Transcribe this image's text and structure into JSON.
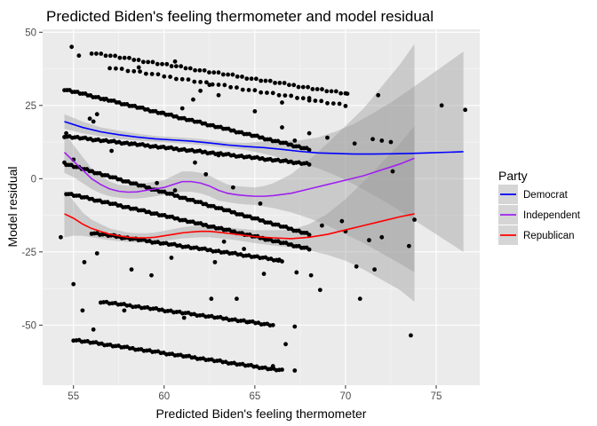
{
  "chart_data": {
    "type": "scatter",
    "title": "Predicted Biden's feeling thermometer and model residual",
    "xlabel": "Predicted Biden's feeling thermometer",
    "ylabel": "Model residual",
    "xlim": [
      53.3,
      77.4
    ],
    "ylim": [
      -70.5,
      51
    ],
    "x_ticks": [
      55,
      60,
      65,
      70,
      75
    ],
    "y_ticks": [
      -50,
      -25,
      0,
      25,
      50
    ],
    "grid": true,
    "legend": {
      "title": "Party",
      "placement": "right",
      "entries": [
        {
          "name": "Democrat",
          "color": "#0000FF"
        },
        {
          "name": "Independent",
          "color": "#A020F0"
        },
        {
          "name": "Republican",
          "color": "#FF0000"
        }
      ]
    },
    "point_color": "#000000",
    "band_color": "#999999",
    "bands": [
      {
        "x0": 54.5,
        "x1": 68.0,
        "y0": 30.5,
        "y1": 10.0,
        "n": 95
      },
      {
        "x0": 54.5,
        "x1": 68.0,
        "y0": 14.5,
        "y1": 5.0,
        "n": 95
      },
      {
        "x0": 54.6,
        "x1": 68.0,
        "y0": 5.0,
        "y1": -19.0,
        "n": 95
      },
      {
        "x0": 54.6,
        "x1": 68.0,
        "y0": -5.0,
        "y1": -24.0,
        "n": 95
      },
      {
        "x0": 56.0,
        "x1": 66.5,
        "y0": -18.5,
        "y1": -28.0,
        "n": 70
      },
      {
        "x0": 56.5,
        "x1": 66.0,
        "y0": -42.0,
        "y1": -50.0,
        "n": 60
      },
      {
        "x0": 55.0,
        "x1": 66.5,
        "y0": -55.0,
        "y1": -65.5,
        "n": 75
      },
      {
        "x0": 56.0,
        "x1": 70.0,
        "y0": 43.0,
        "y1": 29.0,
        "n": 55
      },
      {
        "x0": 57.0,
        "x1": 70.0,
        "y0": 38.0,
        "y1": 25.0,
        "n": 40
      }
    ],
    "points": [
      {
        "x": 54.9,
        "y": 45.0
      },
      {
        "x": 55.3,
        "y": 42.0
      },
      {
        "x": 58.6,
        "y": 38.0
      },
      {
        "x": 60.6,
        "y": 40.0
      },
      {
        "x": 62.0,
        "y": 30.0
      },
      {
        "x": 62.5,
        "y": 32.0
      },
      {
        "x": 63.0,
        "y": 28.5
      },
      {
        "x": 61.6,
        "y": 27.0
      },
      {
        "x": 65.0,
        "y": 23.0
      },
      {
        "x": 66.5,
        "y": 26.0
      },
      {
        "x": 68.0,
        "y": 27.5
      },
      {
        "x": 70.1,
        "y": 29.0
      },
      {
        "x": 71.8,
        "y": 28.5
      },
      {
        "x": 66.5,
        "y": 17.5
      },
      {
        "x": 68.0,
        "y": 15.5
      },
      {
        "x": 56.7,
        "y": 27.0
      },
      {
        "x": 56.3,
        "y": 22.0
      },
      {
        "x": 55.9,
        "y": 20.5
      },
      {
        "x": 56.1,
        "y": 19.5
      },
      {
        "x": 59.9,
        "y": 22.5
      },
      {
        "x": 61.0,
        "y": 24.0
      },
      {
        "x": 67.2,
        "y": 13.0
      },
      {
        "x": 69.0,
        "y": 14.0
      },
      {
        "x": 70.5,
        "y": 12.0
      },
      {
        "x": 71.5,
        "y": 13.5
      },
      {
        "x": 72.0,
        "y": 13.0
      },
      {
        "x": 72.5,
        "y": 12.5
      },
      {
        "x": 75.3,
        "y": 25.0
      },
      {
        "x": 76.6,
        "y": 23.5
      },
      {
        "x": 54.6,
        "y": 15.5
      },
      {
        "x": 54.5,
        "y": 5.5
      },
      {
        "x": 54.3,
        "y": -20.0
      },
      {
        "x": 55.0,
        "y": 6.5
      },
      {
        "x": 57.1,
        "y": 9.5
      },
      {
        "x": 58.2,
        "y": 12.0
      },
      {
        "x": 59.6,
        "y": -1.5
      },
      {
        "x": 60.6,
        "y": -4.0
      },
      {
        "x": 61.7,
        "y": 5.5
      },
      {
        "x": 62.3,
        "y": 1.5
      },
      {
        "x": 63.0,
        "y": 8.0
      },
      {
        "x": 63.8,
        "y": -3.0
      },
      {
        "x": 65.3,
        "y": -8.5
      },
      {
        "x": 68.7,
        "y": -16.0
      },
      {
        "x": 69.8,
        "y": -14.5
      },
      {
        "x": 70.0,
        "y": -18.0
      },
      {
        "x": 71.3,
        "y": -21.0
      },
      {
        "x": 70.6,
        "y": -30.0
      },
      {
        "x": 71.6,
        "y": -31.0
      },
      {
        "x": 72.0,
        "y": -20.0
      },
      {
        "x": 72.6,
        "y": 2.5
      },
      {
        "x": 73.5,
        "y": -23.0
      },
      {
        "x": 73.8,
        "y": -14.0
      },
      {
        "x": 73.6,
        "y": -53.5
      },
      {
        "x": 70.8,
        "y": -41.0
      },
      {
        "x": 65.5,
        "y": -32.5
      },
      {
        "x": 67.3,
        "y": -32.0
      },
      {
        "x": 68.1,
        "y": -33.0
      },
      {
        "x": 68.6,
        "y": -38.0
      },
      {
        "x": 59.3,
        "y": -33.0
      },
      {
        "x": 58.2,
        "y": -31.0
      },
      {
        "x": 55.0,
        "y": -36.0
      },
      {
        "x": 55.5,
        "y": -45.0
      },
      {
        "x": 56.1,
        "y": -51.5
      },
      {
        "x": 57.8,
        "y": -45.0
      },
      {
        "x": 61.1,
        "y": -47.5
      },
      {
        "x": 62.6,
        "y": -41.0
      },
      {
        "x": 64.0,
        "y": -41.0
      },
      {
        "x": 64.6,
        "y": -49.0
      },
      {
        "x": 67.2,
        "y": -50.5
      },
      {
        "x": 66.7,
        "y": -56.5
      },
      {
        "x": 67.2,
        "y": -65.5
      },
      {
        "x": 66.0,
        "y": -64.0
      },
      {
        "x": 55.6,
        "y": -28.5
      },
      {
        "x": 56.3,
        "y": -25.5
      },
      {
        "x": 63.3,
        "y": -21.5
      },
      {
        "x": 64.4,
        "y": -24.0
      },
      {
        "x": 66.3,
        "y": -28.0
      },
      {
        "x": 62.8,
        "y": -28.5
      },
      {
        "x": 60.4,
        "y": -27.0
      },
      {
        "x": 57.3,
        "y": -19.5
      }
    ],
    "series": [
      {
        "name": "Democrat",
        "color": "#0000FF",
        "x": [
          54.5,
          55.5,
          56.5,
          57.5,
          58.5,
          59.5,
          60.5,
          61.5,
          62.5,
          63.5,
          64.5,
          65.5,
          66.5,
          67.5,
          68.5,
          69.5,
          70.5,
          71.5,
          72.5,
          73.5,
          74.5,
          75.5,
          76.5
        ],
        "y": [
          19.5,
          17.5,
          16.0,
          15.0,
          14.2,
          13.6,
          13.2,
          12.8,
          12.2,
          11.5,
          11.0,
          10.6,
          10.0,
          9.3,
          8.8,
          8.6,
          8.4,
          8.4,
          8.5,
          8.6,
          8.8,
          9.0,
          9.2
        ],
        "band_low": [
          17.0,
          15.5,
          14.5,
          13.6,
          13.0,
          12.6,
          12.2,
          11.8,
          11.2,
          10.5,
          9.8,
          8.5,
          7.0,
          5.5,
          3.5,
          1.0,
          -2.0,
          -5.5,
          -9.0,
          -13.0,
          -17.0,
          -21.0,
          -25.0
        ],
        "band_high": [
          22.0,
          19.5,
          17.5,
          16.4,
          15.4,
          14.6,
          14.2,
          13.8,
          13.2,
          12.5,
          12.2,
          12.7,
          13.0,
          13.1,
          14.1,
          16.2,
          18.8,
          22.3,
          26.0,
          30.2,
          34.6,
          39.0,
          43.4
        ]
      },
      {
        "name": "Independent",
        "color": "#A020F0",
        "x": [
          54.5,
          55.0,
          55.5,
          56.0,
          56.5,
          57.0,
          57.5,
          58.0,
          58.5,
          59.0,
          59.5,
          60.0,
          60.5,
          61.0,
          61.5,
          62.0,
          62.5,
          63.0,
          63.5,
          64.0,
          64.5,
          65.0,
          65.5,
          66.0,
          67.0,
          68.0,
          69.0,
          70.0,
          71.0,
          72.0,
          73.0,
          73.8
        ],
        "y": [
          9.0,
          6.0,
          3.0,
          0.0,
          -2.0,
          -3.5,
          -4.3,
          -4.6,
          -4.5,
          -4.0,
          -3.5,
          -3.0,
          -2.0,
          -1.0,
          -1.0,
          -1.5,
          -2.5,
          -4.0,
          -5.0,
          -5.5,
          -5.8,
          -6.0,
          -6.0,
          -5.8,
          -5.0,
          -3.5,
          -2.0,
          -0.5,
          1.0,
          3.0,
          5.0,
          7.0
        ],
        "band_low": [
          2.0,
          0.5,
          -1.5,
          -3.5,
          -5.0,
          -6.0,
          -6.5,
          -6.8,
          -6.8,
          -6.5,
          -6.0,
          -5.5,
          -5.0,
          -4.5,
          -4.5,
          -5.0,
          -6.0,
          -7.5,
          -8.0,
          -8.5,
          -8.8,
          -9.0,
          -9.5,
          -10.0,
          -11.5,
          -13.5,
          -16.0,
          -19.0,
          -22.0,
          -25.5,
          -29.0,
          -32.0
        ],
        "band_high": [
          16.0,
          11.5,
          7.5,
          3.5,
          1.0,
          -1.0,
          -2.1,
          -2.4,
          -2.2,
          -1.5,
          -1.0,
          -0.5,
          1.0,
          2.5,
          2.5,
          2.0,
          1.0,
          -0.5,
          -2.0,
          -2.5,
          -2.8,
          -3.0,
          -2.5,
          -1.6,
          1.5,
          6.5,
          12.0,
          18.0,
          24.0,
          31.5,
          39.0,
          46.0
        ]
      },
      {
        "name": "Republican",
        "color": "#FF0000",
        "x": [
          54.5,
          55.0,
          55.5,
          56.0,
          56.5,
          57.0,
          57.5,
          58.0,
          58.5,
          59.0,
          59.5,
          60.0,
          60.5,
          61.0,
          61.5,
          62.0,
          62.5,
          63.0,
          64.0,
          65.0,
          66.0,
          67.0,
          68.0,
          69.0,
          70.0,
          71.0,
          72.0,
          73.0,
          73.8
        ],
        "y": [
          -12.0,
          -13.5,
          -15.5,
          -17.0,
          -18.0,
          -19.0,
          -19.5,
          -20.0,
          -20.2,
          -20.2,
          -20.0,
          -19.5,
          -19.0,
          -18.5,
          -18.2,
          -18.0,
          -18.0,
          -18.3,
          -19.0,
          -19.8,
          -20.2,
          -20.5,
          -20.0,
          -19.0,
          -17.5,
          -16.0,
          -14.5,
          -13.0,
          -12.0
        ],
        "band_low": [
          -20.0,
          -19.5,
          -19.5,
          -20.0,
          -20.5,
          -21.0,
          -21.3,
          -21.6,
          -21.8,
          -21.8,
          -21.6,
          -21.2,
          -20.8,
          -20.4,
          -20.2,
          -20.0,
          -20.0,
          -20.3,
          -21.0,
          -22.0,
          -22.8,
          -23.5,
          -24.5,
          -26.0,
          -28.0,
          -31.0,
          -34.5,
          -38.0,
          -42.0
        ],
        "band_high": [
          -4.0,
          -7.5,
          -11.5,
          -14.0,
          -15.5,
          -17.0,
          -17.7,
          -18.4,
          -18.6,
          -18.6,
          -18.4,
          -17.8,
          -17.2,
          -16.6,
          -16.2,
          -16.0,
          -16.0,
          -16.3,
          -17.0,
          -17.6,
          -17.6,
          -17.5,
          -15.5,
          -12.0,
          -7.0,
          -1.0,
          5.5,
          12.0,
          18.0
        ]
      }
    ]
  }
}
